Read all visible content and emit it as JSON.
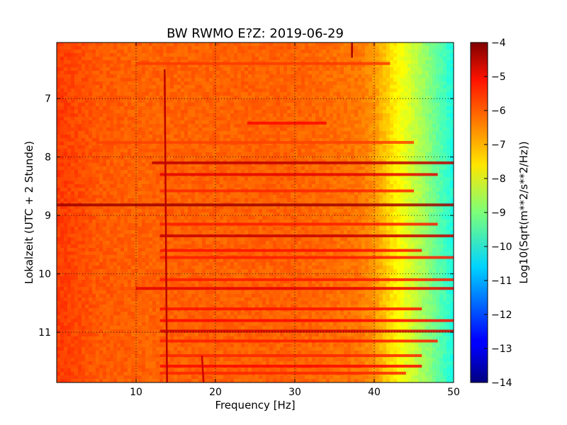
{
  "chart_data": {
    "type": "heatmap",
    "title": "BW RWMO E?Z: 2019-06-29",
    "xlabel": "Frequency [Hz]",
    "ylabel": "Lokalzeit (UTC + 2 Stunde)",
    "xlim": [
      0,
      50
    ],
    "ylim": [
      6.04,
      11.86
    ],
    "y_inverted": true,
    "x_ticks": [
      10,
      20,
      30,
      40,
      50
    ],
    "y_ticks": [
      7,
      8,
      9,
      10,
      11
    ],
    "grid": true,
    "colormap": "jet",
    "colorbar": {
      "label": "Log10(Sqrt(m**2/s**2/Hz))",
      "range": [
        -14,
        -4
      ],
      "ticks": [
        -4,
        -5,
        -6,
        -7,
        -8,
        -9,
        -10,
        -11,
        -12,
        -13,
        -14
      ]
    },
    "spectrum_profile": {
      "frequency_hz": [
        0,
        5,
        10,
        20,
        30,
        38,
        40,
        42,
        44,
        46,
        48,
        50
      ],
      "log10_amplitude": [
        -5.8,
        -6.1,
        -6.2,
        -6.2,
        -6.2,
        -6.4,
        -6.7,
        -7.4,
        -8.0,
        -8.6,
        -9.3,
        -10.0
      ]
    },
    "bands": [
      {
        "time": 6.4,
        "level": -5.8,
        "fmin": 10,
        "fmax": 42
      },
      {
        "time": 7.42,
        "level": -5.3,
        "fmin": 24,
        "fmax": 34
      },
      {
        "time": 7.75,
        "level": -5.9,
        "fmin": 5,
        "fmax": 45
      },
      {
        "time": 8.1,
        "level": -4.6,
        "fmin": 12,
        "fmax": 50
      },
      {
        "time": 8.3,
        "level": -5.0,
        "fmin": 13,
        "fmax": 48
      },
      {
        "time": 8.58,
        "level": -5.6,
        "fmin": 13,
        "fmax": 45
      },
      {
        "time": 8.82,
        "level": -4.3,
        "fmin": 0,
        "fmax": 50
      },
      {
        "time": 9.15,
        "level": -5.5,
        "fmin": 13,
        "fmax": 48
      },
      {
        "time": 9.35,
        "level": -4.7,
        "fmin": 13,
        "fmax": 50
      },
      {
        "time": 9.6,
        "level": -5.4,
        "fmin": 13,
        "fmax": 46
      },
      {
        "time": 9.72,
        "level": -5.5,
        "fmin": 13,
        "fmax": 50
      },
      {
        "time": 10.1,
        "level": -5.5,
        "fmin": 13,
        "fmax": 50
      },
      {
        "time": 10.25,
        "level": -5.0,
        "fmin": 10,
        "fmax": 50
      },
      {
        "time": 10.6,
        "level": -5.4,
        "fmin": 13,
        "fmax": 46
      },
      {
        "time": 10.8,
        "level": -5.3,
        "fmin": 13,
        "fmax": 50
      },
      {
        "time": 10.98,
        "level": -4.8,
        "fmin": 13,
        "fmax": 50
      },
      {
        "time": 11.15,
        "level": -5.5,
        "fmin": 13,
        "fmax": 48
      },
      {
        "time": 11.4,
        "level": -5.6,
        "fmin": 13,
        "fmax": 46
      },
      {
        "time": 11.58,
        "level": -5.3,
        "fmin": 13,
        "fmax": 46
      },
      {
        "time": 11.7,
        "level": -5.6,
        "fmin": 13,
        "fmax": 44
      }
    ],
    "features": [
      {
        "kind": "tonal-line",
        "f_start": 13.6,
        "f_end": 13.9,
        "t_start": 6.5,
        "t_end": 11.86,
        "level": -4.6
      },
      {
        "kind": "tonal-line",
        "f_start": 18.3,
        "f_end": 18.5,
        "t_start": 11.4,
        "t_end": 11.86,
        "level": -4.8
      },
      {
        "kind": "tonal-line",
        "f_start": 37.2,
        "f_end": 37.2,
        "t_start": 6.04,
        "t_end": 6.3,
        "level": -4.4
      }
    ]
  }
}
